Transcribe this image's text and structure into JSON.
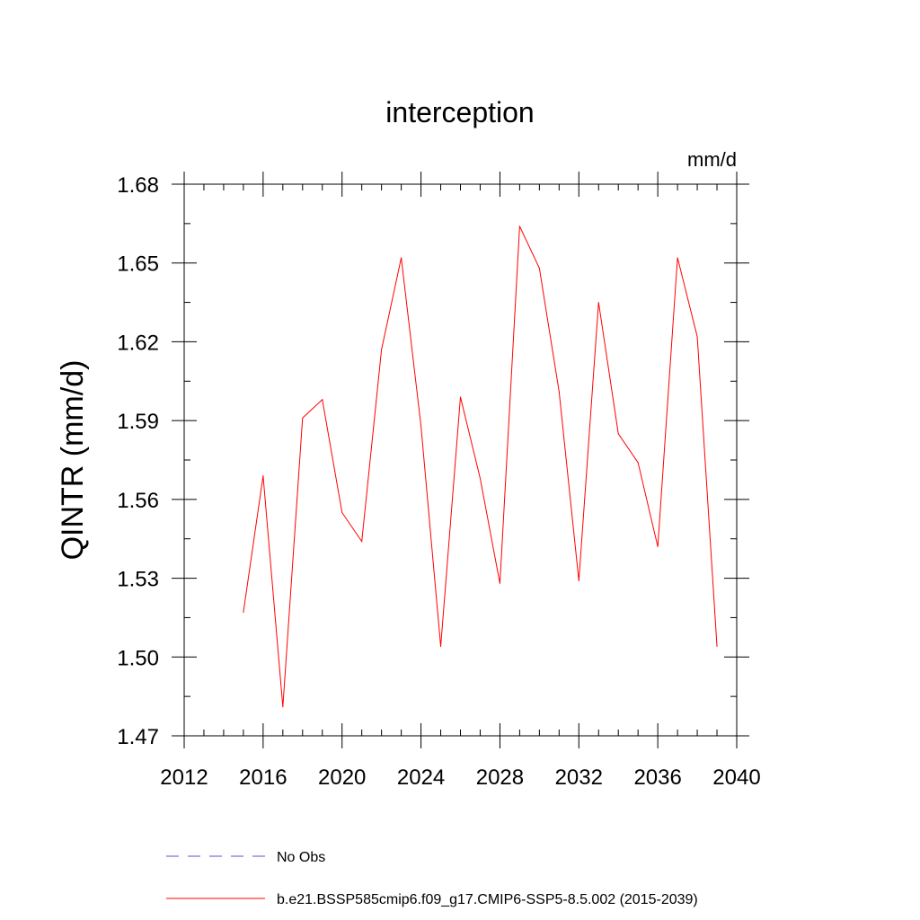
{
  "chart_data": {
    "type": "line",
    "title": "interception",
    "units_label": "mm/d",
    "ylabel": "QINTR  (mm/d)",
    "xlabel": "",
    "xlim": [
      2012,
      2040
    ],
    "ylim": [
      1.47,
      1.68
    ],
    "x_ticks": [
      2012,
      2016,
      2020,
      2024,
      2028,
      2032,
      2036,
      2040
    ],
    "x_tick_labels": [
      "2012",
      "2016",
      "2020",
      "2024",
      "2028",
      "2032",
      "2036",
      "2040"
    ],
    "y_ticks": [
      1.47,
      1.5,
      1.53,
      1.56,
      1.59,
      1.62,
      1.65,
      1.68
    ],
    "y_tick_labels": [
      "1.47",
      "1.50",
      "1.53",
      "1.56",
      "1.59",
      "1.62",
      "1.65",
      "1.68"
    ],
    "grid": false,
    "legend_position": "bottom",
    "series": [
      {
        "name": "No Obs",
        "color": "#5a4fcf",
        "dash": "dashed",
        "x": [],
        "values": []
      },
      {
        "name": "b.e21.BSSP585cmip6.f09_g17.CMIP6-SSP5-8.5.002 (2015-2039)",
        "color": "#ff0000",
        "dash": "solid",
        "x": [
          2015,
          2016,
          2017,
          2018,
          2019,
          2020,
          2021,
          2022,
          2023,
          2024,
          2025,
          2026,
          2027,
          2028,
          2029,
          2030,
          2031,
          2032,
          2033,
          2034,
          2035,
          2036,
          2037,
          2038,
          2039
        ],
        "values": [
          1.517,
          1.569,
          1.481,
          1.591,
          1.598,
          1.555,
          1.544,
          1.617,
          1.652,
          1.588,
          1.504,
          1.599,
          1.568,
          1.528,
          1.664,
          1.648,
          1.601,
          1.529,
          1.635,
          1.585,
          1.574,
          1.542,
          1.652,
          1.622,
          1.504
        ]
      }
    ]
  }
}
